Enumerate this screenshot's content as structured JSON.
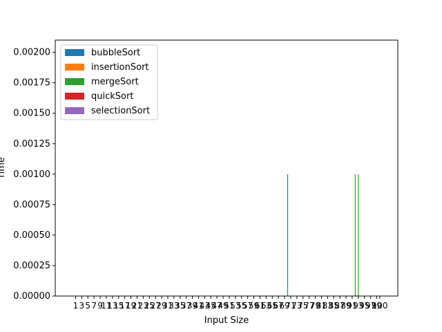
{
  "chart_data": {
    "type": "bar",
    "title": "",
    "xlabel": "Input Size",
    "ylabel": "Time",
    "ylim": [
      0,
      0.0021
    ],
    "xlim": [
      0,
      100
    ],
    "grid": false,
    "legend_position": "top-left",
    "yticks": [
      "0.00000",
      "0.00025",
      "0.00050",
      "0.00075",
      "0.00100",
      "0.00125",
      "0.00150",
      "0.00175",
      "0.00200"
    ],
    "ytick_values": [
      0,
      0.00025,
      0.0005,
      0.00075,
      0.001,
      0.00125,
      0.0015,
      0.00175,
      0.002
    ],
    "x_tick_values": [
      1,
      3,
      5,
      7,
      9,
      11,
      13,
      15,
      17,
      19,
      21,
      23,
      25,
      27,
      29,
      31,
      33,
      35,
      37,
      39,
      41,
      43,
      45,
      47,
      49,
      51,
      53,
      55,
      57,
      59,
      61,
      63,
      65,
      67,
      69,
      71,
      73,
      75,
      77,
      79,
      81,
      83,
      85,
      87,
      89,
      91,
      93,
      95,
      97,
      99
    ],
    "x_tick_labels": [
      "1",
      "3",
      "5",
      "7",
      "9",
      "11",
      "13",
      "15",
      "17",
      "19",
      "21",
      "23",
      "25",
      "27",
      "29",
      "31",
      "33",
      "35",
      "37",
      "39",
      "41",
      "43",
      "45",
      "47",
      "49",
      "51",
      "53",
      "55",
      "57",
      "59",
      "61",
      "63",
      "65",
      "67",
      "69",
      "71",
      "73",
      "75",
      "77",
      "79",
      "81",
      "83",
      "85",
      "87",
      "89",
      "91",
      "93",
      "95",
      "97",
      "99"
    ],
    "x_tick_label_last": "100",
    "series": [
      {
        "name": "bubbleSort",
        "color": "#1f77b4",
        "points": [
          {
            "x": 70,
            "y": 0.001
          }
        ]
      },
      {
        "name": "insertionSort",
        "color": "#ff7f0e",
        "points": []
      },
      {
        "name": "mergeSort",
        "color": "#2ca02c",
        "points": [
          {
            "x": 92,
            "y": 0.001
          },
          {
            "x": 93,
            "y": 0.001
          }
        ]
      },
      {
        "name": "quickSort",
        "color": "#d62728",
        "points": []
      },
      {
        "name": "selectionSort",
        "color": "#9467bd",
        "points": []
      }
    ]
  }
}
